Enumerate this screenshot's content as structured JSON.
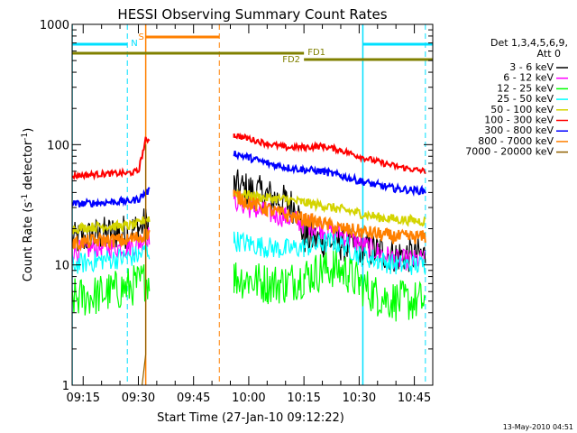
{
  "chart_data": {
    "type": "line",
    "title": "HESSI Observing Summary Count Rates",
    "xlabel": "Start Time (27-Jan-10 09:12:22)",
    "ylabel_main": "Count Rate (s",
    "ylabel_sup1": "-1",
    "ylabel_mid": " detector",
    "ylabel_sup2": "-1",
    "ylabel_end": ")",
    "yscale": "log",
    "ylim": [
      1,
      1000
    ],
    "xlim": [
      "09:12",
      "10:50"
    ],
    "x_ticks": [
      "09:15",
      "09:30",
      "09:45",
      "10:00",
      "10:15",
      "10:30",
      "10:45"
    ],
    "y_ticks": [
      "1",
      "10",
      "100",
      "1000"
    ],
    "legend_header": [
      "Det 1,3,4,5,6,9,",
      "Att 0"
    ],
    "legend": [
      {
        "label": "3 - 6 keV",
        "color": "#000000"
      },
      {
        "label": "6 - 12 keV",
        "color": "#ff00ff"
      },
      {
        "label": "12 - 25 keV",
        "color": "#00ff00"
      },
      {
        "label": "25 - 50 keV",
        "color": "#00ffff"
      },
      {
        "label": "50 - 100 keV",
        "color": "#d4d400"
      },
      {
        "label": "100 - 300 keV",
        "color": "#ff0000"
      },
      {
        "label": "300 - 800 keV",
        "color": "#0000ff"
      },
      {
        "label": "800 - 7000 keV",
        "color": "#ff8000"
      },
      {
        "label": "7000 - 20000 keV",
        "color": "#906000"
      }
    ],
    "annotations": {
      "N": {
        "label": "N",
        "start": "09:12",
        "end": "09:27",
        "color": "#00e0ff"
      },
      "S": {
        "label": "S",
        "start": "09:32",
        "end": "09:52",
        "color": "#ff8000"
      },
      "FD1": {
        "label": "FD1",
        "start": "09:12",
        "end": "10:15",
        "color": "#808000"
      },
      "FD2": {
        "label": "FD2",
        "start": "10:15",
        "end": "10:50",
        "color": "#808000"
      },
      "N2_start": "10:31"
    },
    "vertical_lines": {
      "solid_cyan": [
        "09:12",
        "10:31"
      ],
      "dashed_cyan": [
        "09:27",
        "10:48"
      ],
      "solid_orange": [
        "09:32"
      ],
      "dashed_orange": [
        "09:52"
      ]
    },
    "series": [
      {
        "name": "3 - 6 keV",
        "color": "#000000",
        "points": [
          [
            "09:12",
            16
          ],
          [
            "09:20",
            18
          ],
          [
            "09:27",
            19
          ],
          [
            "09:30",
            20
          ],
          [
            "09:32",
            22
          ],
          [
            "09:56",
            45
          ],
          [
            "10:00",
            42
          ],
          [
            "10:05",
            38
          ],
          [
            "10:10",
            33
          ],
          [
            "10:13",
            30
          ],
          [
            "10:15",
            17
          ],
          [
            "10:20",
            16
          ],
          [
            "10:25",
            15
          ],
          [
            "10:30",
            14
          ],
          [
            "10:35",
            13
          ],
          [
            "10:40",
            12
          ],
          [
            "10:48",
            12
          ]
        ]
      },
      {
        "name": "6 - 12 keV",
        "color": "#ff00ff",
        "points": [
          [
            "09:12",
            13
          ],
          [
            "09:20",
            14
          ],
          [
            "09:27",
            14
          ],
          [
            "09:30",
            15
          ],
          [
            "09:32",
            17
          ],
          [
            "09:56",
            35
          ],
          [
            "10:00",
            30
          ],
          [
            "10:05",
            27
          ],
          [
            "10:10",
            25
          ],
          [
            "10:15",
            22
          ],
          [
            "10:20",
            20
          ],
          [
            "10:25",
            18
          ],
          [
            "10:30",
            15
          ],
          [
            "10:35",
            13
          ],
          [
            "10:40",
            11
          ],
          [
            "10:48",
            11
          ]
        ]
      },
      {
        "name": "12 - 25 keV",
        "color": "#00ff00",
        "points": [
          [
            "09:12",
            5.2
          ],
          [
            "09:20",
            5.7
          ],
          [
            "09:27",
            6.5
          ],
          [
            "09:30",
            7
          ],
          [
            "09:32",
            7.5
          ],
          [
            "09:56",
            8
          ],
          [
            "10:00",
            7.5
          ],
          [
            "10:05",
            7
          ],
          [
            "10:10",
            7
          ],
          [
            "10:15",
            8
          ],
          [
            "10:20",
            9
          ],
          [
            "10:23",
            9.5
          ],
          [
            "10:27",
            8.5
          ],
          [
            "10:30",
            7
          ],
          [
            "10:35",
            5.5
          ],
          [
            "10:40",
            5
          ],
          [
            "10:48",
            5
          ]
        ]
      },
      {
        "name": "25 - 50 keV",
        "color": "#00ffff",
        "points": [
          [
            "09:12",
            10
          ],
          [
            "09:20",
            11
          ],
          [
            "09:27",
            11.5
          ],
          [
            "09:30",
            12
          ],
          [
            "09:32",
            13
          ],
          [
            "09:56",
            16
          ],
          [
            "10:00",
            15
          ],
          [
            "10:05",
            14
          ],
          [
            "10:10",
            13.5
          ],
          [
            "10:15",
            14
          ],
          [
            "10:20",
            15
          ],
          [
            "10:23",
            15.5
          ],
          [
            "10:27",
            14
          ],
          [
            "10:30",
            12
          ],
          [
            "10:35",
            11
          ],
          [
            "10:40",
            10
          ],
          [
            "10:48",
            10
          ]
        ]
      },
      {
        "name": "50 - 100 keV",
        "color": "#d4d400",
        "points": [
          [
            "09:12",
            20
          ],
          [
            "09:20",
            21
          ],
          [
            "09:27",
            21
          ],
          [
            "09:30",
            22
          ],
          [
            "09:32",
            24
          ],
          [
            "09:56",
            40
          ],
          [
            "10:00",
            38
          ],
          [
            "10:05",
            36
          ],
          [
            "10:10",
            35
          ],
          [
            "10:15",
            33
          ],
          [
            "10:20",
            31
          ],
          [
            "10:25",
            29
          ],
          [
            "10:30",
            27
          ],
          [
            "10:35",
            25
          ],
          [
            "10:40",
            24
          ],
          [
            "10:48",
            23
          ]
        ]
      },
      {
        "name": "100 - 300 keV",
        "color": "#ff0000",
        "points": [
          [
            "09:12",
            55
          ],
          [
            "09:20",
            57
          ],
          [
            "09:27",
            58
          ],
          [
            "09:30",
            60
          ],
          [
            "09:32",
            110
          ],
          [
            "09:56",
            120
          ],
          [
            "10:00",
            112
          ],
          [
            "10:05",
            102
          ],
          [
            "10:10",
            95
          ],
          [
            "10:15",
            95
          ],
          [
            "10:20",
            97
          ],
          [
            "10:25",
            90
          ],
          [
            "10:30",
            80
          ],
          [
            "10:35",
            72
          ],
          [
            "10:40",
            66
          ],
          [
            "10:45",
            62
          ],
          [
            "10:48",
            60
          ]
        ]
      },
      {
        "name": "300 - 800 keV",
        "color": "#0000ff",
        "points": [
          [
            "09:12",
            32
          ],
          [
            "09:20",
            33
          ],
          [
            "09:27",
            34
          ],
          [
            "09:30",
            35
          ],
          [
            "09:32",
            40
          ],
          [
            "09:56",
            85
          ],
          [
            "10:00",
            78
          ],
          [
            "10:05",
            70
          ],
          [
            "10:10",
            65
          ],
          [
            "10:15",
            62
          ],
          [
            "10:20",
            60
          ],
          [
            "10:25",
            55
          ],
          [
            "10:30",
            50
          ],
          [
            "10:35",
            46
          ],
          [
            "10:40",
            43
          ],
          [
            "10:48",
            41
          ]
        ]
      },
      {
        "name": "800 - 7000 keV",
        "color": "#ff8000",
        "points": [
          [
            "09:12",
            15
          ],
          [
            "09:20",
            16
          ],
          [
            "09:27",
            16
          ],
          [
            "09:30",
            17
          ],
          [
            "09:32",
            18
          ],
          [
            "09:56",
            38
          ],
          [
            "10:00",
            33
          ],
          [
            "10:05",
            29
          ],
          [
            "10:10",
            26
          ],
          [
            "10:15",
            24
          ],
          [
            "10:20",
            22
          ],
          [
            "10:25",
            20
          ],
          [
            "10:30",
            19
          ],
          [
            "10:35",
            18
          ],
          [
            "10:40",
            17
          ],
          [
            "10:48",
            17
          ]
        ]
      },
      {
        "name": "7000 - 20000 keV",
        "color": "#906000",
        "points": [
          [
            "09:31",
            1
          ],
          [
            "09:32",
            1.8
          ],
          [
            "09:32",
            100
          ]
        ]
      }
    ]
  },
  "footer": {
    "timestamp": "13-May-2010 04:51"
  }
}
